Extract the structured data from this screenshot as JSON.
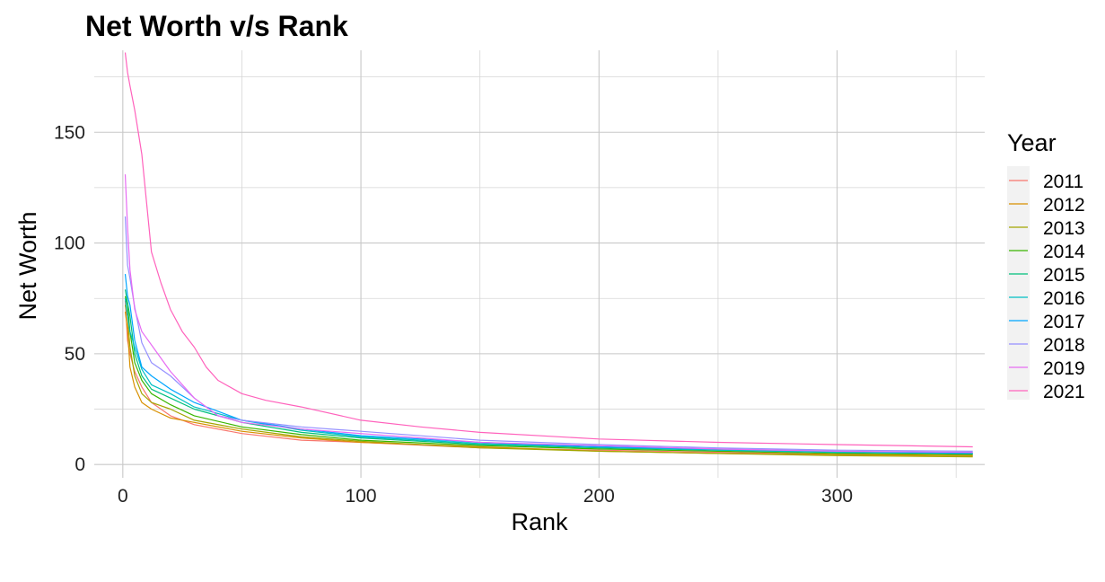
{
  "chart_data": {
    "type": "line",
    "title": "Net Worth v/s Rank",
    "xlabel": "Rank",
    "ylabel": "Net Worth",
    "xlim": [
      -12,
      362
    ],
    "ylim": [
      -6,
      187
    ],
    "x_ticks": [
      0,
      100,
      200,
      300
    ],
    "x_tick_labels": [
      "0",
      "100",
      "200",
      "300"
    ],
    "y_ticks": [
      0,
      50,
      100,
      150
    ],
    "y_tick_labels": [
      "0",
      "50",
      "100",
      "150"
    ],
    "grid": true,
    "legend": {
      "title": "Year",
      "position": "right"
    },
    "series": [
      {
        "name": "2011",
        "color": "#F8766D",
        "x": [
          1,
          2,
          3,
          5,
          8,
          12,
          20,
          30,
          50,
          75,
          100,
          150,
          200,
          250,
          300,
          357
        ],
        "y": [
          74,
          56,
          50,
          42,
          35,
          28,
          22,
          18,
          14,
          11,
          10,
          7.5,
          6.5,
          5.5,
          4.5,
          4
        ]
      },
      {
        "name": "2012",
        "color": "#D89000",
        "x": [
          1,
          2,
          3,
          5,
          8,
          12,
          20,
          30,
          50,
          75,
          100,
          150,
          200,
          250,
          300,
          357
        ],
        "y": [
          69,
          61,
          44,
          35,
          28,
          25,
          21,
          19,
          15,
          12,
          10,
          8,
          6,
          5,
          4.5,
          4
        ]
      },
      {
        "name": "2013",
        "color": "#A3A500",
        "x": [
          1,
          2,
          3,
          5,
          8,
          12,
          20,
          30,
          50,
          75,
          100,
          150,
          200,
          250,
          300,
          357
        ],
        "y": [
          72,
          67,
          53,
          40,
          32,
          28,
          25,
          20,
          16,
          12.5,
          10.5,
          7.5,
          6,
          5,
          4,
          3.5
        ]
      },
      {
        "name": "2014",
        "color": "#39B600",
        "x": [
          1,
          2,
          3,
          5,
          8,
          12,
          20,
          30,
          50,
          75,
          100,
          150,
          200,
          250,
          300,
          357
        ],
        "y": [
          76,
          72,
          60,
          46,
          38,
          32,
          27,
          22,
          17,
          13.5,
          11,
          8.5,
          7,
          6,
          5,
          4.5
        ]
      },
      {
        "name": "2015",
        "color": "#00BF7D",
        "x": [
          1,
          2,
          3,
          5,
          8,
          12,
          20,
          30,
          50,
          75,
          100,
          150,
          200,
          250,
          300,
          357
        ],
        "y": [
          79,
          73,
          67,
          50,
          40,
          34,
          30,
          25,
          19,
          14.5,
          12,
          9,
          7.5,
          6.5,
          5.5,
          5
        ]
      },
      {
        "name": "2016",
        "color": "#00BFC4",
        "x": [
          1,
          2,
          3,
          5,
          8,
          12,
          20,
          30,
          50,
          75,
          100,
          150,
          200,
          250,
          300,
          357
        ],
        "y": [
          75,
          67,
          60,
          53,
          43,
          36,
          32,
          26,
          20,
          15.5,
          12.5,
          9.5,
          8,
          6.5,
          5.5,
          5
        ]
      },
      {
        "name": "2017",
        "color": "#00A5FF",
        "x": [
          1,
          2,
          3,
          5,
          8,
          12,
          20,
          30,
          50,
          75,
          100,
          150,
          200,
          250,
          300,
          357
        ],
        "y": [
          86,
          76,
          72,
          56,
          44,
          40,
          34,
          28,
          20,
          16,
          13,
          10,
          8,
          7,
          6,
          5
        ]
      },
      {
        "name": "2018",
        "color": "#9590FF",
        "x": [
          1,
          2,
          3,
          5,
          8,
          12,
          20,
          30,
          40,
          50,
          75,
          100,
          150,
          200,
          250,
          300,
          357
        ],
        "y": [
          112,
          90,
          84,
          71,
          55,
          46,
          40,
          30,
          22,
          20,
          17,
          15,
          11,
          9,
          7.5,
          6.5,
          6
        ]
      },
      {
        "name": "2019",
        "color": "#E76BF3",
        "x": [
          1,
          2,
          3,
          5,
          8,
          12,
          20,
          30,
          40,
          50,
          75,
          100,
          150,
          200,
          250,
          300,
          357
        ],
        "y": [
          131,
          107,
          88,
          70,
          60,
          54,
          42,
          30,
          22,
          19,
          16,
          14,
          10,
          8.5,
          7,
          6,
          5.5
        ]
      },
      {
        "name": "2021",
        "color": "#FF62BC",
        "x": [
          1,
          2,
          3,
          5,
          8,
          12,
          16,
          20,
          25,
          30,
          35,
          40,
          50,
          60,
          75,
          100,
          125,
          150,
          200,
          250,
          300,
          357
        ],
        "y": [
          186,
          177,
          171,
          160,
          140,
          96,
          82,
          70,
          60,
          53,
          44,
          38,
          32,
          29,
          26,
          20,
          17,
          14.5,
          11.5,
          10,
          9,
          8
        ]
      }
    ]
  }
}
